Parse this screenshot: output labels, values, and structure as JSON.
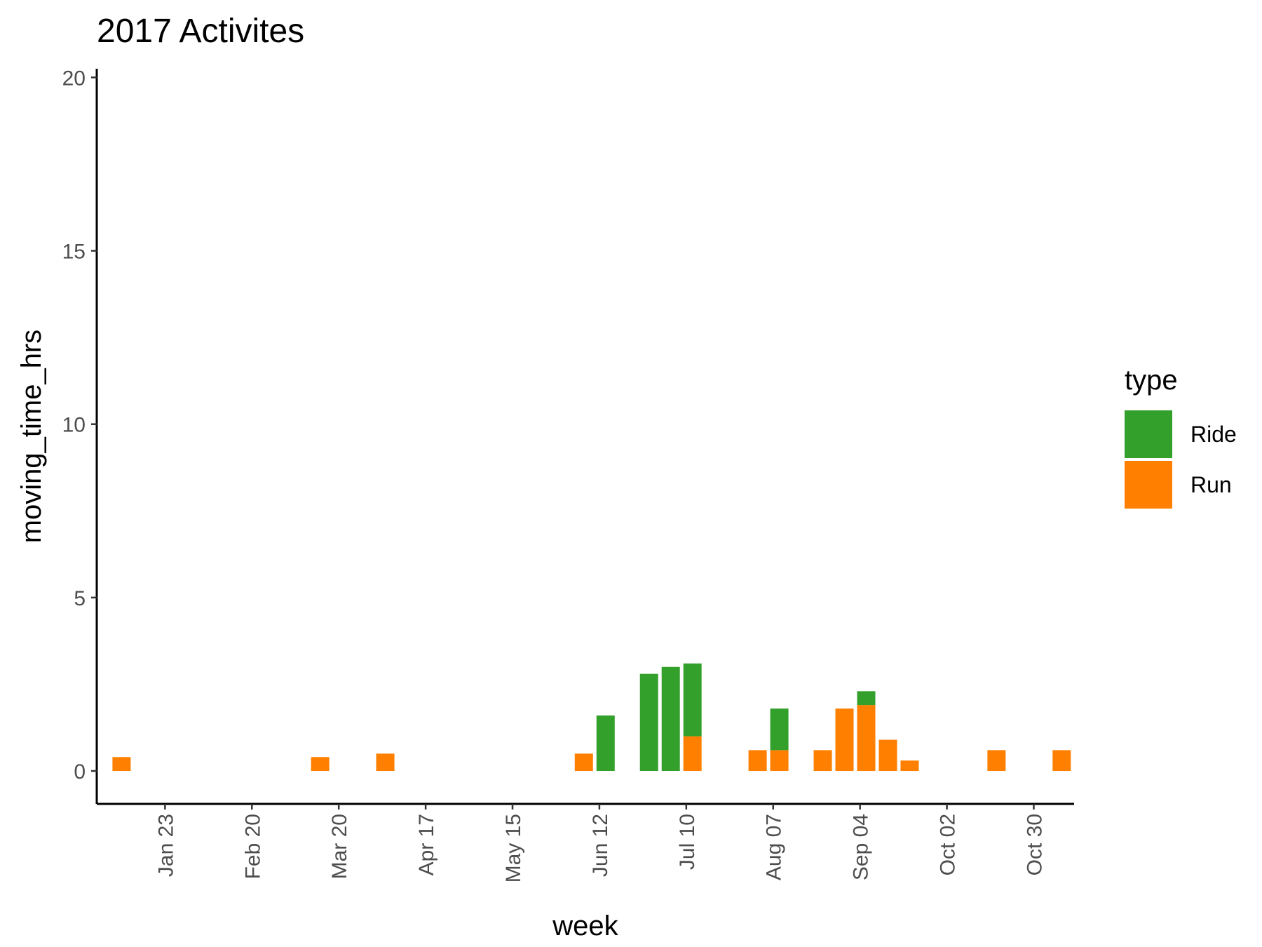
{
  "chart_data": {
    "type": "bar",
    "stacked": true,
    "title": "2017 Activites",
    "xlabel": "week",
    "ylabel": "moving_time_hrs",
    "ylim": [
      -0.95,
      20.25
    ],
    "yticks": [
      0,
      5,
      10,
      15,
      20
    ],
    "xlim": [
      "2017-01-01",
      "2017-11-12"
    ],
    "xticks": [
      {
        "date": "2017-01-23",
        "label": "Jan 23"
      },
      {
        "date": "2017-02-20",
        "label": "Feb 20"
      },
      {
        "date": "2017-03-20",
        "label": "Mar 20"
      },
      {
        "date": "2017-04-17",
        "label": "Apr 17"
      },
      {
        "date": "2017-05-15",
        "label": "May 15"
      },
      {
        "date": "2017-06-12",
        "label": "Jun 12"
      },
      {
        "date": "2017-07-10",
        "label": "Jul 10"
      },
      {
        "date": "2017-08-07",
        "label": "Aug 07"
      },
      {
        "date": "2017-09-04",
        "label": "Sep 04"
      },
      {
        "date": "2017-10-02",
        "label": "Oct 02"
      },
      {
        "date": "2017-10-30",
        "label": "Oct 30"
      }
    ],
    "grid": false,
    "legend": {
      "title": "type",
      "position": "right"
    },
    "series": [
      {
        "name": "Ride",
        "color": "#33a02c",
        "points": [
          {
            "week": "2017-06-14",
            "value": 1.6
          },
          {
            "week": "2017-06-28",
            "value": 2.8
          },
          {
            "week": "2017-07-05",
            "value": 3.0
          },
          {
            "week": "2017-07-12",
            "value": 2.1
          },
          {
            "week": "2017-08-09",
            "value": 1.2
          },
          {
            "week": "2017-09-06",
            "value": 0.4
          }
        ]
      },
      {
        "name": "Run",
        "color": "#ff7f00",
        "points": [
          {
            "week": "2017-01-09",
            "value": 0.4
          },
          {
            "week": "2017-03-14",
            "value": 0.4
          },
          {
            "week": "2017-04-04",
            "value": 0.5
          },
          {
            "week": "2017-06-07",
            "value": 0.5
          },
          {
            "week": "2017-07-12",
            "value": 1.0
          },
          {
            "week": "2017-08-02",
            "value": 0.6
          },
          {
            "week": "2017-08-09",
            "value": 0.6
          },
          {
            "week": "2017-08-23",
            "value": 0.6
          },
          {
            "week": "2017-08-30",
            "value": 1.8
          },
          {
            "week": "2017-09-06",
            "value": 1.9
          },
          {
            "week": "2017-09-13",
            "value": 0.9
          },
          {
            "week": "2017-09-20",
            "value": 0.3
          },
          {
            "week": "2017-10-18",
            "value": 0.6
          },
          {
            "week": "2017-11-08",
            "value": 0.6
          }
        ]
      }
    ]
  }
}
